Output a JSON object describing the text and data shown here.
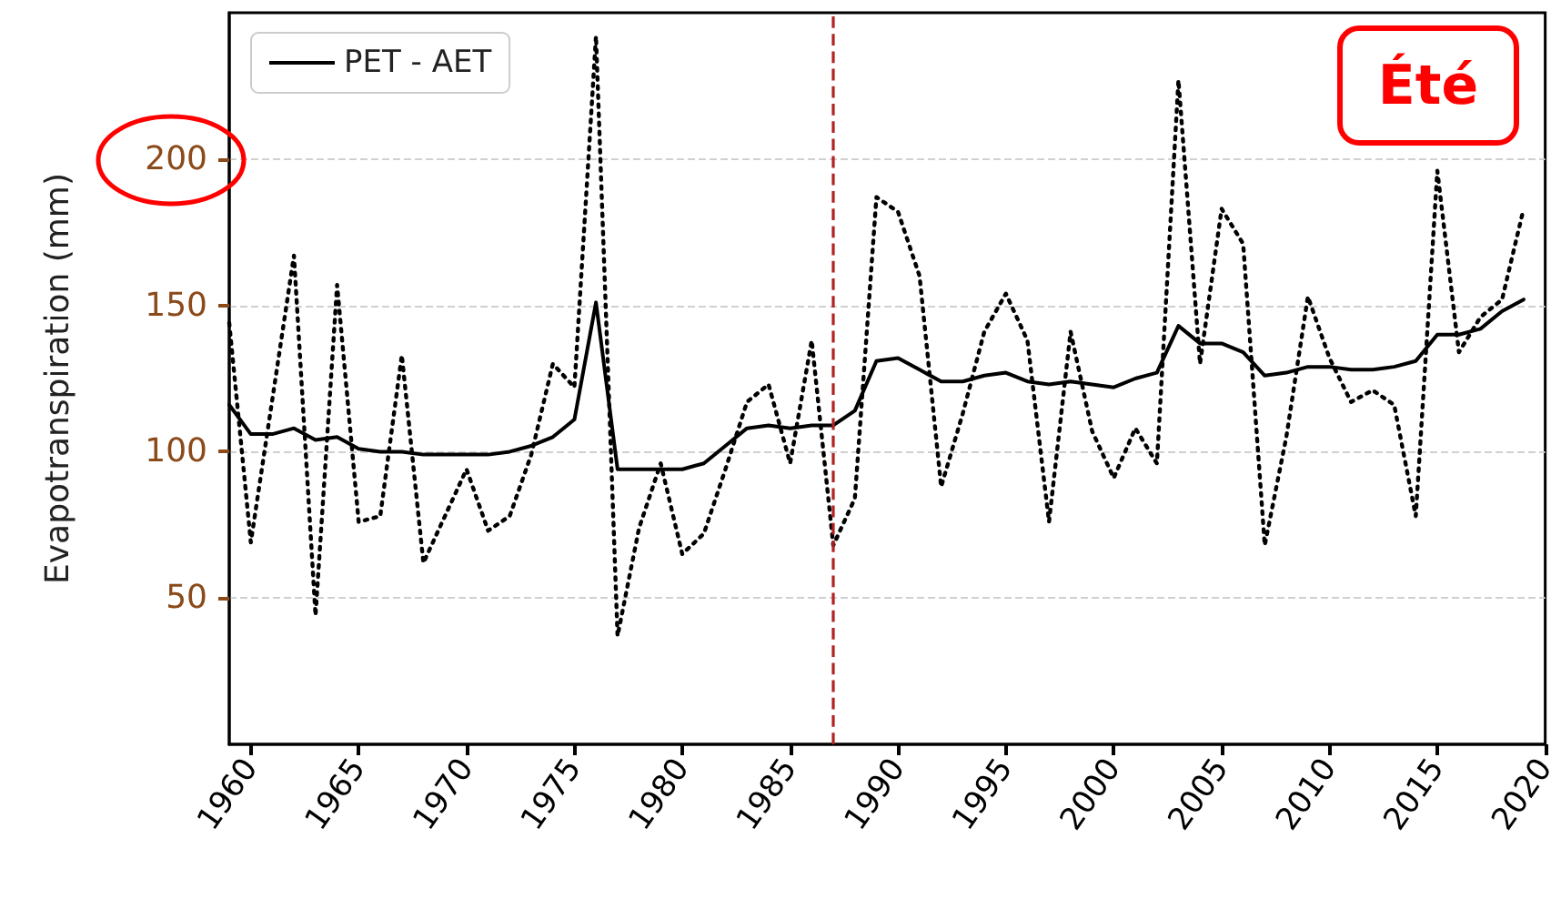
{
  "chart_data": {
    "type": "line",
    "ylabel": "Evapotranspiration (mm)",
    "annotations": [
      "Été"
    ],
    "x": [
      1959,
      1960,
      1961,
      1962,
      1963,
      1964,
      1965,
      1966,
      1967,
      1968,
      1969,
      1970,
      1971,
      1972,
      1973,
      1974,
      1975,
      1976,
      1977,
      1978,
      1979,
      1980,
      1981,
      1982,
      1983,
      1984,
      1985,
      1986,
      1987,
      1988,
      1989,
      1990,
      1991,
      1992,
      1993,
      1994,
      1995,
      1996,
      1997,
      1998,
      1999,
      2000,
      2001,
      2002,
      2003,
      2004,
      2005,
      2006,
      2007,
      2008,
      2009,
      2010,
      2011,
      2012,
      2013,
      2014,
      2015,
      2016,
      2017,
      2018,
      2019
    ],
    "series": [
      {
        "color": "#000000",
        "line_style": "dotted",
        "values": [
          144,
          69,
          118,
          167,
          44,
          157,
          76,
          78,
          133,
          62,
          78,
          94,
          73,
          78,
          99,
          130,
          122,
          242,
          37,
          74,
          96,
          65,
          72,
          94,
          117,
          123,
          96,
          138,
          68,
          84,
          187,
          182,
          160,
          88,
          113,
          141,
          154,
          138,
          76,
          141,
          107,
          91,
          108,
          96,
          227,
          130,
          183,
          171,
          68,
          105,
          153,
          132,
          117,
          121,
          116,
          78,
          196,
          134,
          146,
          152,
          183
        ]
      },
      {
        "name": "PET - AET",
        "color": "#000000",
        "line_style": "solid",
        "values": [
          116,
          106,
          106,
          108,
          104,
          105,
          101,
          100,
          100,
          99,
          99,
          99,
          99,
          100,
          102,
          105,
          111,
          151,
          94,
          94,
          94,
          94,
          96,
          102,
          108,
          109,
          108,
          109,
          109,
          114,
          131,
          132,
          128,
          124,
          124,
          126,
          127,
          124,
          123,
          124,
          123,
          122,
          125,
          127,
          143,
          137,
          137,
          134,
          126,
          127,
          129,
          129,
          128,
          128,
          129,
          131,
          140,
          140,
          142,
          148,
          152
        ]
      }
    ],
    "xlim": [
      1959,
      2020
    ],
    "xticks": [
      1960,
      1965,
      1970,
      1975,
      1980,
      1985,
      1990,
      1995,
      2000,
      2005,
      2010,
      2015,
      2020
    ],
    "ylim": [
      0,
      250
    ],
    "yticks": [
      50,
      100,
      150,
      200
    ],
    "ref_lines": [
      {
        "axis": "x",
        "value": 1987,
        "color": "#b22222",
        "line_style": "dashed"
      }
    ],
    "grid": "y",
    "legend": "top left",
    "marker": "none"
  }
}
